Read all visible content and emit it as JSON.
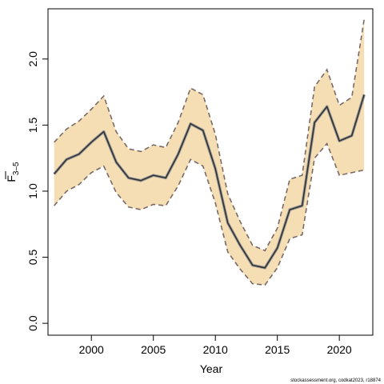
{
  "chart_data": {
    "type": "line",
    "xlabel": "Year",
    "ylabel_main": "F",
    "ylabel_sub": "3–5",
    "xlim": [
      1996.5,
      2022.7
    ],
    "ylim": [
      -0.09,
      2.38
    ],
    "x_ticks": [
      2000,
      2005,
      2010,
      2015,
      2020
    ],
    "y_ticks": [
      "0.0",
      "0.5",
      "1.0",
      "1.5",
      "2.0"
    ],
    "colors": {
      "band_fill": "#f5deb3",
      "bound_line": "#7a6a66",
      "estimate_line": "#333333",
      "estimate_halo": "#9a9a9a",
      "axis": "#000000"
    },
    "grid": false,
    "legend": "none",
    "x": [
      1997,
      1998,
      1999,
      2000,
      2001,
      2002,
      2003,
      2004,
      2005,
      2006,
      2007,
      2008,
      2009,
      2010,
      2011,
      2012,
      2013,
      2014,
      2015,
      2016,
      2017,
      2018,
      2019,
      2020,
      2021,
      2022
    ],
    "series": [
      {
        "role": "estimate",
        "values": [
          1.13,
          1.24,
          1.28,
          1.37,
          1.45,
          1.22,
          1.1,
          1.08,
          1.12,
          1.1,
          1.28,
          1.51,
          1.46,
          1.17,
          0.76,
          0.59,
          0.44,
          0.42,
          0.57,
          0.86,
          0.89,
          1.52,
          1.64,
          1.38,
          1.42,
          1.73
        ]
      },
      {
        "role": "upper",
        "values": [
          1.37,
          1.47,
          1.53,
          1.62,
          1.72,
          1.45,
          1.32,
          1.3,
          1.35,
          1.33,
          1.52,
          1.78,
          1.73,
          1.43,
          0.98,
          0.77,
          0.59,
          0.55,
          0.72,
          1.09,
          1.12,
          1.79,
          1.92,
          1.65,
          1.71,
          2.3
        ]
      },
      {
        "role": "lower",
        "values": [
          0.89,
          1.0,
          1.05,
          1.14,
          1.19,
          0.99,
          0.88,
          0.86,
          0.9,
          0.89,
          1.04,
          1.24,
          1.19,
          0.91,
          0.54,
          0.41,
          0.3,
          0.29,
          0.42,
          0.64,
          0.67,
          1.25,
          1.36,
          1.12,
          1.14,
          1.16
        ]
      }
    ]
  },
  "footer": {
    "credit": "stockassessment.org, codkat2023, r18874"
  }
}
